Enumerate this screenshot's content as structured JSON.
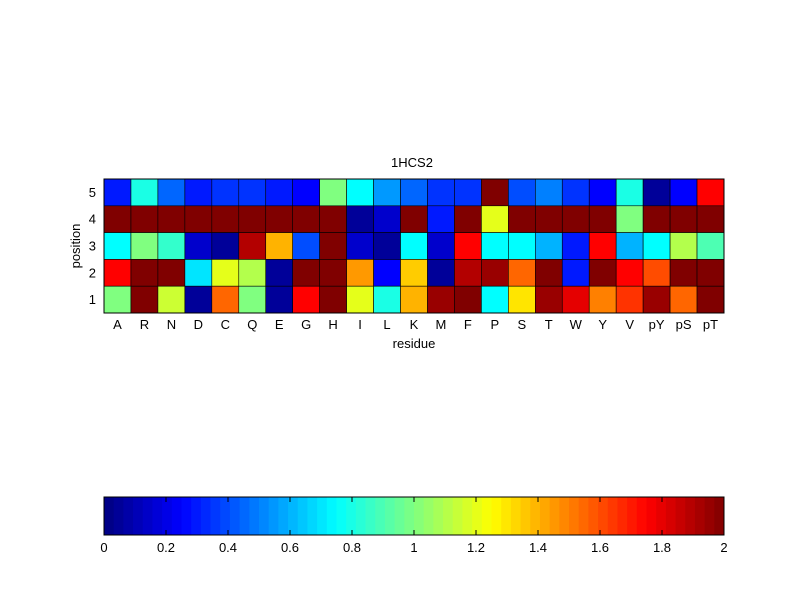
{
  "chart_data": {
    "type": "heatmap",
    "title": "1HCS2",
    "xlabel": "residue",
    "ylabel": "position",
    "x_categories": [
      "A",
      "R",
      "N",
      "D",
      "C",
      "Q",
      "E",
      "G",
      "H",
      "I",
      "L",
      "K",
      "M",
      "F",
      "P",
      "S",
      "T",
      "W",
      "Y",
      "V",
      "pY",
      "pS",
      "pT"
    ],
    "y_categories": [
      "5",
      "4",
      "3",
      "2",
      "1"
    ],
    "values": [
      [
        0.3,
        0.8,
        0.45,
        0.3,
        0.35,
        0.35,
        0.3,
        0.25,
        1.0,
        0.75,
        0.55,
        0.45,
        0.35,
        0.35,
        2.0,
        0.4,
        0.5,
        0.35,
        0.25,
        0.8,
        0.05,
        0.25,
        1.75
      ],
      [
        2.0,
        2.0,
        2.0,
        2.0,
        2.0,
        2.0,
        2.0,
        2.0,
        2.0,
        0.05,
        0.15,
        2.0,
        0.3,
        2.0,
        1.2,
        2.0,
        2.0,
        2.0,
        2.0,
        1.0,
        2.0,
        2.0,
        2.0
      ],
      [
        0.75,
        1.0,
        0.85,
        0.15,
        0.05,
        1.9,
        1.4,
        0.4,
        2.0,
        0.15,
        0.05,
        0.75,
        0.15,
        1.75,
        0.75,
        0.75,
        0.6,
        0.3,
        1.75,
        0.6,
        0.75,
        1.1,
        0.9
      ],
      [
        1.75,
        2.0,
        2.0,
        0.7,
        1.2,
        1.1,
        0.05,
        2.0,
        2.0,
        1.45,
        0.25,
        1.35,
        0.05,
        1.9,
        1.95,
        1.55,
        2.0,
        0.3,
        2.0,
        1.75,
        1.6,
        2.0,
        2.0
      ],
      [
        1.0,
        2.0,
        1.15,
        0.05,
        1.55,
        1.0,
        0.05,
        1.75,
        2.0,
        1.2,
        0.8,
        1.4,
        1.95,
        2.0,
        0.75,
        1.3,
        1.95,
        1.8,
        1.5,
        1.65,
        1.95,
        1.55,
        2.0
      ]
    ],
    "colorbar": {
      "min": 0,
      "max": 2,
      "ticks": [
        "0",
        "0.2",
        "0.4",
        "0.6",
        "0.8",
        "1",
        "1.2",
        "1.4",
        "1.6",
        "1.8",
        "2"
      ],
      "colormap": "jet"
    },
    "grid": false
  }
}
